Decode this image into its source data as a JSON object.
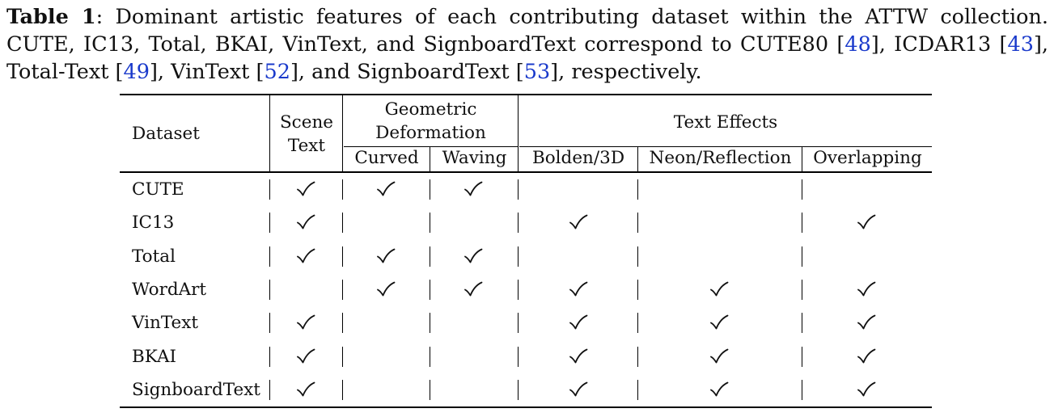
{
  "caption": {
    "label": "Table 1",
    "line1_text": ": Dominant artistic features of each contributing dataset within the ATTW collection. CUTE,",
    "line2_a": "IC13, Total, BKAI, VinText, and SignboardText correspond to CUTE80 [",
    "ref_cute80": "48",
    "line2_b": "], ICDAR13 [",
    "ref_icdar13": "43",
    "line2_c": "], Total-",
    "line3_a": "Text [",
    "ref_total": "49",
    "line3_b": "], VinText [",
    "ref_vintext": "52",
    "line3_c": "], and SignboardText [",
    "ref_signboard": "53",
    "line3_d": "], respectively."
  },
  "table": {
    "headers": {
      "dataset": "Dataset",
      "scene_text_line1": "Scene",
      "scene_text_line2": "Text",
      "geometric_line1": "Geometric",
      "geometric_line2": "Deformation",
      "text_effects": "Text Effects",
      "curved": "Curved",
      "waving": "Waving",
      "bolden3d": "Bolden/3D",
      "neon": "Neon/Reflection",
      "overlapping": "Overlapping"
    },
    "rows": [
      {
        "name": "CUTE",
        "checks": [
          true,
          true,
          true,
          false,
          false,
          false
        ]
      },
      {
        "name": "IC13",
        "checks": [
          true,
          false,
          false,
          true,
          false,
          true
        ]
      },
      {
        "name": "Total",
        "checks": [
          true,
          true,
          true,
          false,
          false,
          false
        ]
      },
      {
        "name": "WordArt",
        "checks": [
          false,
          true,
          true,
          true,
          true,
          true
        ]
      },
      {
        "name": "VinText",
        "checks": [
          true,
          false,
          false,
          true,
          true,
          true
        ]
      },
      {
        "name": "BKAI",
        "checks": [
          true,
          false,
          false,
          true,
          true,
          true
        ]
      },
      {
        "name": "SignboardText",
        "checks": [
          true,
          false,
          false,
          true,
          true,
          true
        ]
      }
    ],
    "check_icon": "checkmark-icon"
  }
}
